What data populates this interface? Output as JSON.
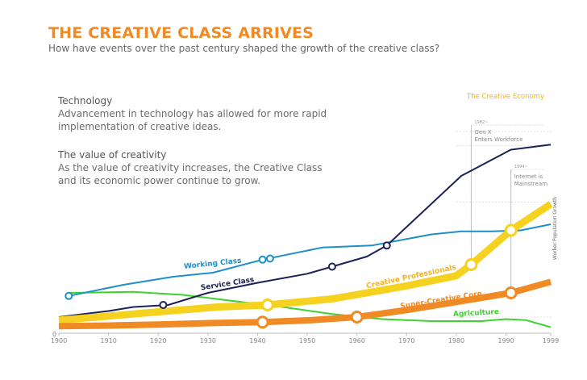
{
  "header": {
    "title": "THE CREATIVE CLASS ARRIVES",
    "subtitle": "How have events over the past century shaped the growth of the creative class?"
  },
  "intro": [
    {
      "heading": "Technology",
      "body": "Advancement in technology has allowed for more rapid implementation of creative ideas."
    },
    {
      "heading": "The value of creativity",
      "body": "As the value of creativity increases, the Creative Class and its economic power continue to grow."
    }
  ],
  "colors": {
    "working": "#1f8fc9",
    "service": "#1b2257",
    "creative": "#f5d21f",
    "super": "#f08a24",
    "agriculture": "#3fd12e",
    "title": "#f08a24"
  },
  "chart_data": {
    "type": "line",
    "title": "THE CREATIVE CLASS ARRIVES",
    "xlabel": "",
    "ylabel": "Worker Population Growth",
    "y_zero_label": "0",
    "xlim": [
      1900,
      1999
    ],
    "ylim": [
      0,
      100
    ],
    "x_ticks": [
      1900,
      1910,
      1920,
      1930,
      1940,
      1950,
      1960,
      1970,
      1980,
      1990,
      1999
    ],
    "x_tick_labels": [
      "1900",
      "1910",
      "1920",
      "1930",
      "1940",
      "1950",
      "1960",
      "1970",
      "1980",
      "1990",
      "1999"
    ],
    "region_label": "The Creative Economy",
    "series": [
      {
        "key": "working",
        "name": "Working Class",
        "width": 2,
        "points": [
          [
            1902,
            18.5
          ],
          [
            1913,
            24
          ],
          [
            1923,
            28
          ],
          [
            1931,
            30
          ],
          [
            1941,
            36.5
          ],
          [
            1953,
            42.5
          ],
          [
            1963,
            43.5
          ],
          [
            1975,
            49
          ],
          [
            1981,
            50.5
          ],
          [
            1987,
            50.5
          ],
          [
            1993,
            51
          ],
          [
            1999,
            54
          ]
        ],
        "markers": [
          [
            1902,
            18.5
          ],
          [
            1941,
            36.5
          ],
          [
            1942.5,
            37
          ]
        ]
      },
      {
        "key": "service",
        "name": "Service Class",
        "width": 2,
        "points": [
          [
            1900,
            8
          ],
          [
            1910,
            11
          ],
          [
            1915,
            13
          ],
          [
            1922,
            14
          ],
          [
            1930,
            20
          ],
          [
            1940,
            25
          ],
          [
            1950,
            29.5
          ],
          [
            1955,
            33
          ],
          [
            1962,
            38
          ],
          [
            1966,
            43.5
          ],
          [
            1971,
            55
          ],
          [
            1981,
            78
          ],
          [
            1991,
            91
          ],
          [
            1999,
            93.5
          ]
        ],
        "markers": [
          [
            1921,
            14
          ],
          [
            1955,
            33
          ],
          [
            1966,
            43.5
          ]
        ]
      },
      {
        "key": "creative",
        "name": "Creative Professionals",
        "width": 9,
        "points": [
          [
            1900,
            6.5
          ],
          [
            1910,
            8.5
          ],
          [
            1922,
            11
          ],
          [
            1932,
            13
          ],
          [
            1942,
            14
          ],
          [
            1955,
            17
          ],
          [
            1962,
            20
          ],
          [
            1970,
            23.5
          ],
          [
            1980,
            28.5
          ],
          [
            1983,
            34
          ],
          [
            1991,
            51
          ],
          [
            1999,
            64
          ]
        ],
        "markers": [
          [
            1942,
            14
          ],
          [
            1983,
            34
          ],
          [
            1991,
            51
          ]
        ]
      },
      {
        "key": "super",
        "name": "Super-Creative Core",
        "width": 8,
        "points": [
          [
            1900,
            3.5
          ],
          [
            1910,
            3.8
          ],
          [
            1920,
            4.3
          ],
          [
            1930,
            5
          ],
          [
            1941,
            5.5
          ],
          [
            1951,
            6.5
          ],
          [
            1960,
            8
          ],
          [
            1970,
            11.5
          ],
          [
            1980,
            15.5
          ],
          [
            1991,
            20
          ],
          [
            1999,
            25.5
          ]
        ],
        "markers": [
          [
            1941,
            5.5
          ],
          [
            1960,
            8
          ],
          [
            1991,
            20
          ]
        ]
      },
      {
        "key": "agriculture",
        "name": "Agriculture",
        "width": 2,
        "points": [
          [
            1902,
            20
          ],
          [
            1915,
            20.5
          ],
          [
            1925,
            19
          ],
          [
            1935,
            16
          ],
          [
            1945,
            13
          ],
          [
            1955,
            9.5
          ],
          [
            1965,
            7
          ],
          [
            1975,
            6
          ],
          [
            1985,
            6
          ],
          [
            1990,
            7
          ],
          [
            1994,
            6.5
          ],
          [
            1999,
            3
          ]
        ],
        "markers": []
      }
    ],
    "events": [
      {
        "year": 1983,
        "label_small": "1982~",
        "label": "Gen X Enters Workforce"
      },
      {
        "year": 1991,
        "label_small": "1994~",
        "label": "Internet is Mainstream"
      }
    ]
  }
}
